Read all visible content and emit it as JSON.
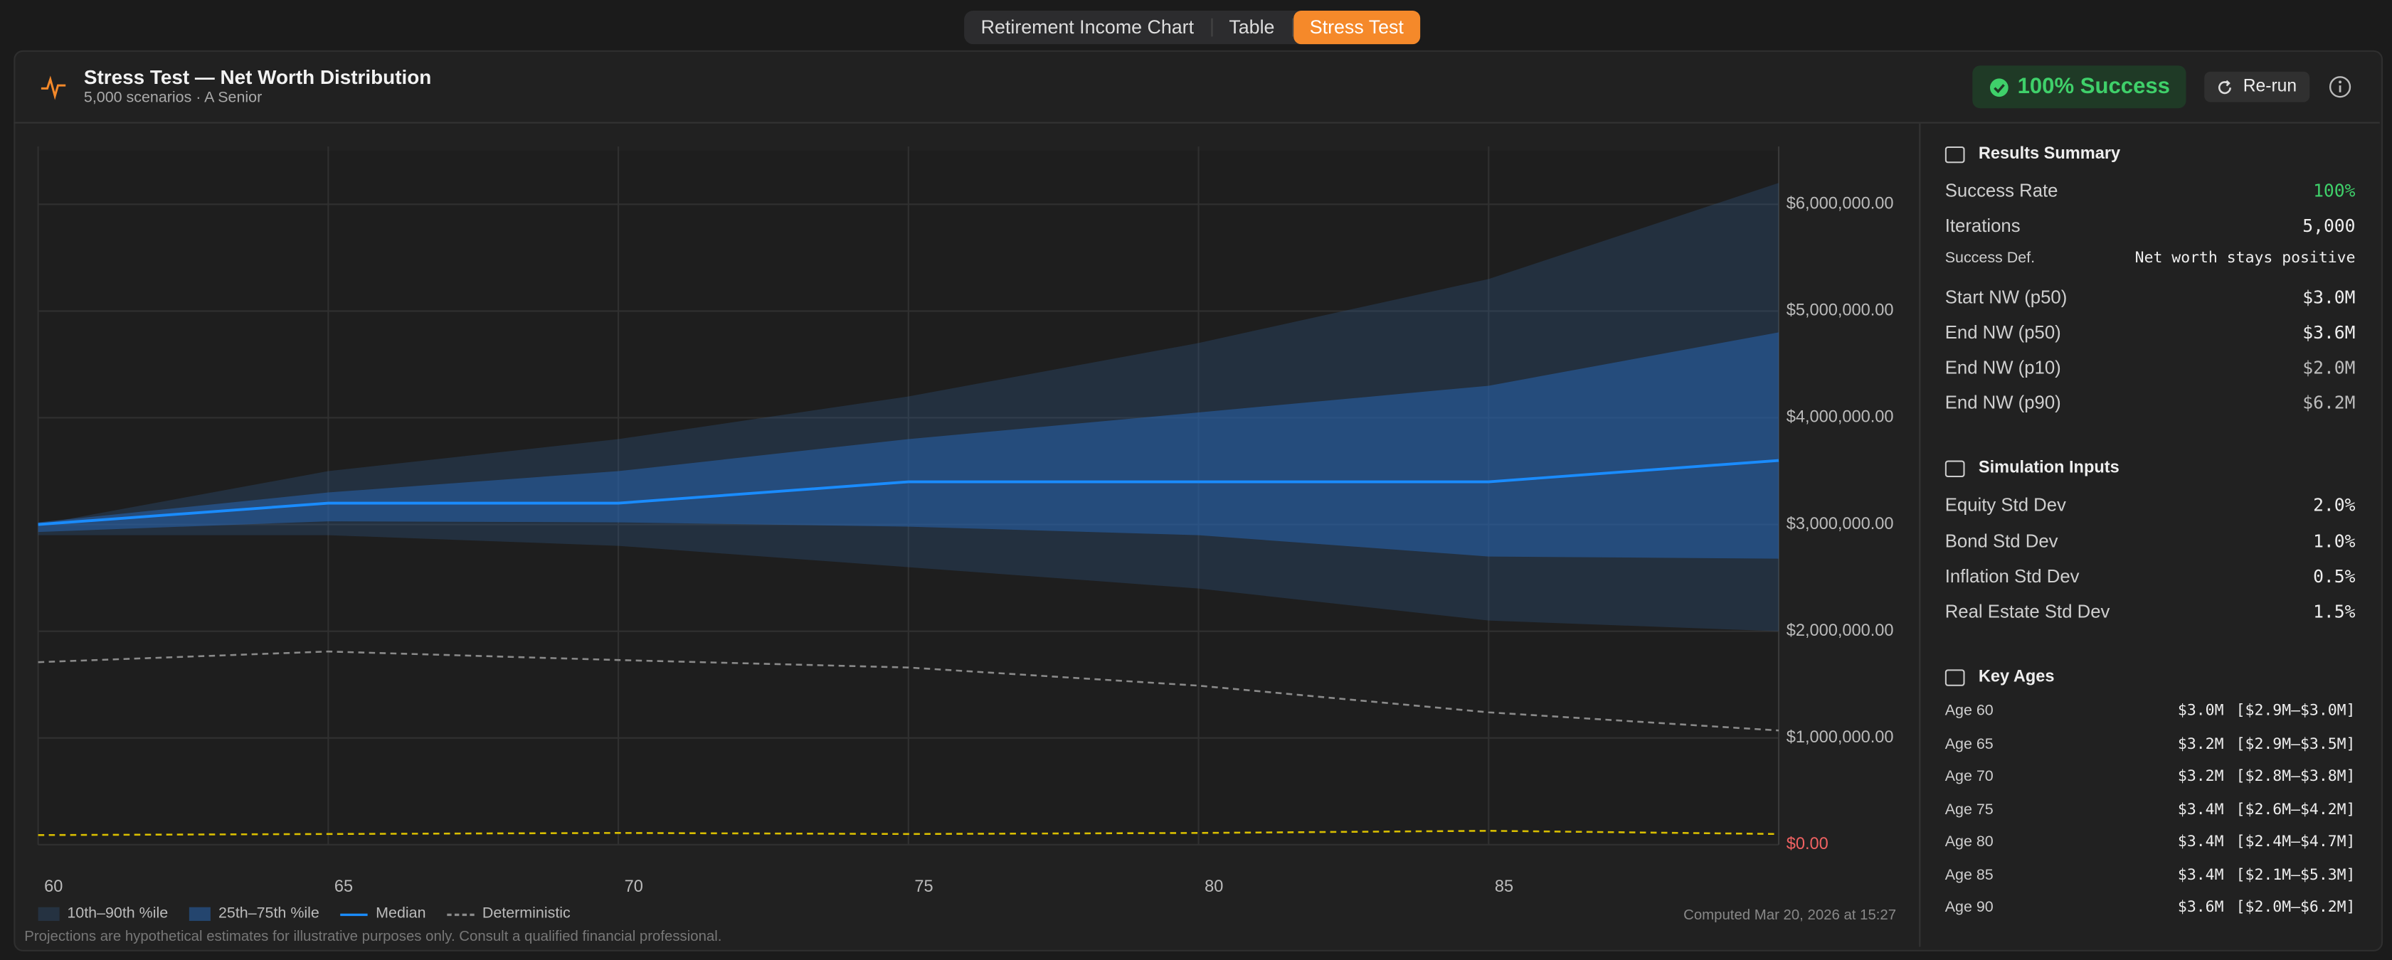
{
  "tabs": [
    "Retirement Income Chart",
    "Table",
    "Stress Test"
  ],
  "active_tab": 2,
  "header": {
    "title": "Stress Test — Net Worth Distribution",
    "subtitle": "5,000 scenarios · A Senior",
    "badge": "100% Success",
    "button": "Re-run"
  },
  "chart_data": {
    "type": "line",
    "x": [
      60,
      65,
      70,
      75,
      80,
      85,
      90
    ],
    "xlim": [
      60,
      90
    ],
    "xticks": [
      60,
      65,
      70,
      75,
      80,
      85
    ],
    "ylim": [
      0,
      6500000
    ],
    "yticks": [
      {
        "value": 0,
        "label": "$0.00"
      },
      {
        "value": 1000000,
        "label": "$1,000,000.00"
      },
      {
        "value": 2000000,
        "label": "$2,000,000.00"
      },
      {
        "value": 3000000,
        "label": "$3,000,000.00"
      },
      {
        "value": 4000000,
        "label": "$4,000,000.00"
      },
      {
        "value": 5000000,
        "label": "$5,000,000.00"
      },
      {
        "value": 6000000,
        "label": "$6,000,000.00"
      }
    ],
    "zero_label_color": "#f06262",
    "grid": true,
    "bands": [
      {
        "name": "10th–90th %ile",
        "color": "rgba(52,96,150,0.28)",
        "lower": [
          2900000,
          2900000,
          2800000,
          2600000,
          2400000,
          2100000,
          2000000
        ],
        "upper": [
          3000000,
          3500000,
          3800000,
          4200000,
          4700000,
          5300000,
          6200000
        ]
      },
      {
        "name": "25th–75th %ile",
        "color": "rgba(40,100,175,0.55)",
        "lower": [
          2930000,
          3030000,
          3020000,
          2980000,
          2900000,
          2700000,
          2680000
        ],
        "upper": [
          3020000,
          3300000,
          3500000,
          3800000,
          4050000,
          4300000,
          4800000
        ]
      }
    ],
    "series": [
      {
        "name": "Median",
        "color": "#1a8cff",
        "values": [
          3000000,
          3200000,
          3200000,
          3400000,
          3400000,
          3400000,
          3600000
        ]
      },
      {
        "name": "Deterministic",
        "color": "#8a8a8a",
        "dashed": true,
        "values": [
          1710000,
          1810000,
          1730000,
          1660000,
          1490000,
          1240000,
          1070000
        ]
      },
      {
        "color": "#d9be00",
        "dashed": true,
        "values": [
          90000,
          100000,
          110000,
          100000,
          110000,
          130000,
          100000
        ]
      }
    ]
  },
  "footer": {
    "note": "Projections are hypothetical estimates for illustrative purposes only. Consult a qualified financial professional.",
    "computed": "Computed Mar 20, 2026 at 15:27"
  },
  "panel": {
    "sections": [
      {
        "title": "Results Summary",
        "rows": [
          {
            "label": "Success Rate",
            "value": "100%",
            "accent": "#3fd06a"
          },
          {
            "label": "Iterations",
            "value": "5,000"
          },
          {
            "label": "Success Def.",
            "value": "Net worth stays positive",
            "small": true
          },
          {
            "label": "Start NW (p50)",
            "value": "$3.0M"
          },
          {
            "label": "End NW (p50)",
            "value": "$3.6M"
          },
          {
            "label": "End NW (p10)",
            "value": "$2.0M",
            "dim": true
          },
          {
            "label": "End NW (p90)",
            "value": "$6.2M",
            "dim": true
          }
        ]
      },
      {
        "title": "Simulation Inputs",
        "rows": [
          {
            "label": "Equity Std Dev",
            "value": "2.0%"
          },
          {
            "label": "Bond Std Dev",
            "value": "1.0%"
          },
          {
            "label": "Inflation Std Dev",
            "value": "0.5%"
          },
          {
            "label": "Real Estate Std Dev",
            "value": "1.5%"
          }
        ]
      },
      {
        "title": "Key Ages",
        "rows": [
          {
            "label": "Age 60",
            "value": "$3.0M",
            "range": "[$2.9M–$3.0M]",
            "small": true
          },
          {
            "label": "Age 65",
            "value": "$3.2M",
            "range": "[$2.9M–$3.5M]",
            "small": true
          },
          {
            "label": "Age 70",
            "value": "$3.2M",
            "range": "[$2.8M–$3.8M]",
            "small": true
          },
          {
            "label": "Age 75",
            "value": "$3.4M",
            "range": "[$2.6M–$4.2M]",
            "small": true
          },
          {
            "label": "Age 80",
            "value": "$3.4M",
            "range": "[$2.4M–$4.7M]",
            "small": true
          },
          {
            "label": "Age 85",
            "value": "$3.4M",
            "range": "[$2.1M–$5.3M]",
            "small": true
          },
          {
            "label": "Age 90",
            "value": "$3.6M",
            "range": "[$2.0M–$6.2M]",
            "small": true
          }
        ]
      }
    ]
  }
}
